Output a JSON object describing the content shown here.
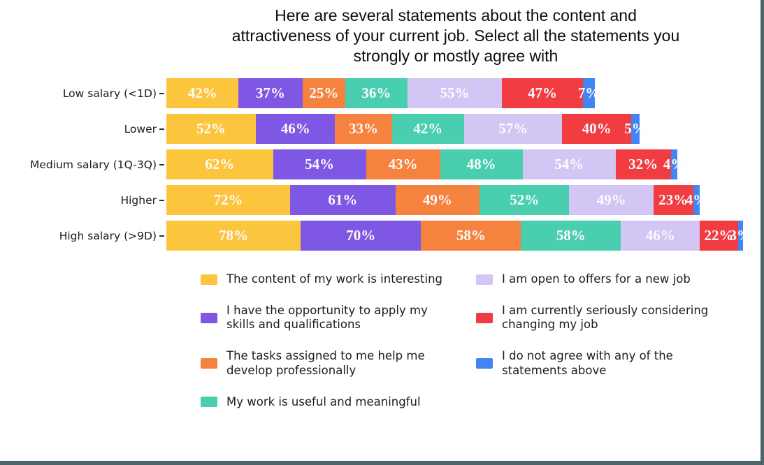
{
  "page": {
    "background": "#ffffff",
    "border_color": "#4D666C"
  },
  "title": "Here are several statements about the content and attractiveness of your current job. Select all the statements you strongly or mostly agree with",
  "chart_data": {
    "type": "bar",
    "orientation": "horizontal",
    "stacked": true,
    "value_suffix": "%",
    "grid": false,
    "legend_position": "bottom",
    "categories": [
      "Low salary (<1D)",
      "Lower",
      "Medium salary (1Q-3Q)",
      "Higher",
      "High salary (>9D)"
    ],
    "series": [
      {
        "name": "The content of my work is interesting",
        "color": "#FCC53E",
        "values": [
          42,
          52,
          62,
          72,
          78
        ]
      },
      {
        "name": "I have the opportunity to apply my skills and qualifications",
        "color": "#7E57E4",
        "values": [
          37,
          46,
          54,
          61,
          70
        ]
      },
      {
        "name": "The tasks assigned to me help me develop professionally",
        "color": "#F5823F",
        "values": [
          25,
          33,
          43,
          49,
          58
        ]
      },
      {
        "name": "My work is useful and meaningful",
        "color": "#49CFB0",
        "values": [
          36,
          42,
          48,
          52,
          58
        ]
      },
      {
        "name": "I am open to offers for a new job",
        "color": "#D3C6F4",
        "values": [
          55,
          57,
          54,
          49,
          46
        ]
      },
      {
        "name": "I am currently seriously considering changing my job",
        "color": "#F13C42",
        "values": [
          47,
          40,
          32,
          23,
          22
        ]
      },
      {
        "name": "I do not agree with any of the statements above",
        "color": "#4285F2",
        "values": [
          7,
          5,
          4,
          4,
          3
        ]
      }
    ],
    "legend_columns": [
      [
        0,
        1,
        2,
        3
      ],
      [
        4,
        5,
        6
      ]
    ],
    "axis_max_total": 335,
    "bar_label_color": "#fcfcfc"
  }
}
